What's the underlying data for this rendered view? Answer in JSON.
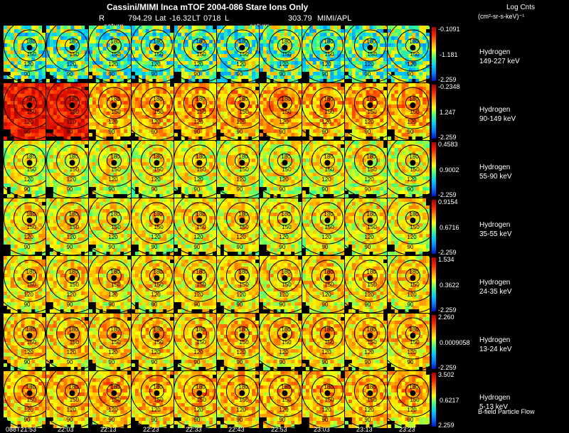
{
  "header": {
    "title": "Cassini/MIMI Inca mTOF  2004-086    Stare    Ions Only",
    "r_label": "R",
    "r_value": "794.29",
    "lat_label": "Lat",
    "lat_value": "-16.32",
    "lt_label": "LT",
    "lt_value": "0718",
    "l_label": "L",
    "l_value": "303.79",
    "credit": "MIMI/APL",
    "marker_left": "saturn",
    "marker_right": "saturn"
  },
  "units": {
    "title": "Log Cnts",
    "line": "(cm²-sr-s-keV)⁻¹"
  },
  "footer_note": "B-field Particle Flow",
  "colors": {
    "background": "#000000",
    "text": "#ffffff",
    "contour": "#000000",
    "colormap": [
      "#0010d0",
      "#0080ff",
      "#00d0ff",
      "#40ff80",
      "#ffff00",
      "#ff9000",
      "#ff2000",
      "#b00000"
    ]
  },
  "chart_data": {
    "type": "heatmap",
    "title": "Cassini/MIMI Inca mTOF 2004-086 Stare Ions Only",
    "columns": [
      "088T21:53",
      "22:03",
      "22:13",
      "22:23",
      "22:33",
      "22:43",
      "22:53",
      "23:03",
      "23:13",
      "23:23"
    ],
    "contour_labels": [
      "180",
      "150",
      "120",
      "90"
    ],
    "rows": [
      {
        "species": "Hydrogen",
        "energy": "149-227 keV",
        "max": "-0.1091",
        "mid": "-1.181",
        "min": "-2.259",
        "level": 0.25
      },
      {
        "species": "Hydrogen",
        "energy": "90-149 keV",
        "max": "-0.2348",
        "mid": "1.247",
        "min": "-2.259",
        "level": 0.72
      },
      {
        "species": "Hydrogen",
        "energy": "55-90 keV",
        "max": "0.4583",
        "mid": "0.9002",
        "min": "-2.259",
        "level": 0.62
      },
      {
        "species": "Hydrogen",
        "energy": "35-55 keV",
        "max": "0.9154",
        "mid": "0.6716",
        "min": "-2.259",
        "level": 0.64
      },
      {
        "species": "Hydrogen",
        "energy": "24-35 keV",
        "max": "1.534",
        "mid": "0.3622",
        "min": "-2.259",
        "level": 0.66
      },
      {
        "species": "Hydrogen",
        "energy": "13-24 keV",
        "max": "2.260",
        "mid": "0.0009058",
        "min": "-2.259",
        "level": 0.68
      },
      {
        "species": "Hydrogen",
        "energy": "5-13 keV",
        "max": "3.502",
        "mid": "0.6217",
        "min": "2.259",
        "level": 0.7
      }
    ]
  }
}
